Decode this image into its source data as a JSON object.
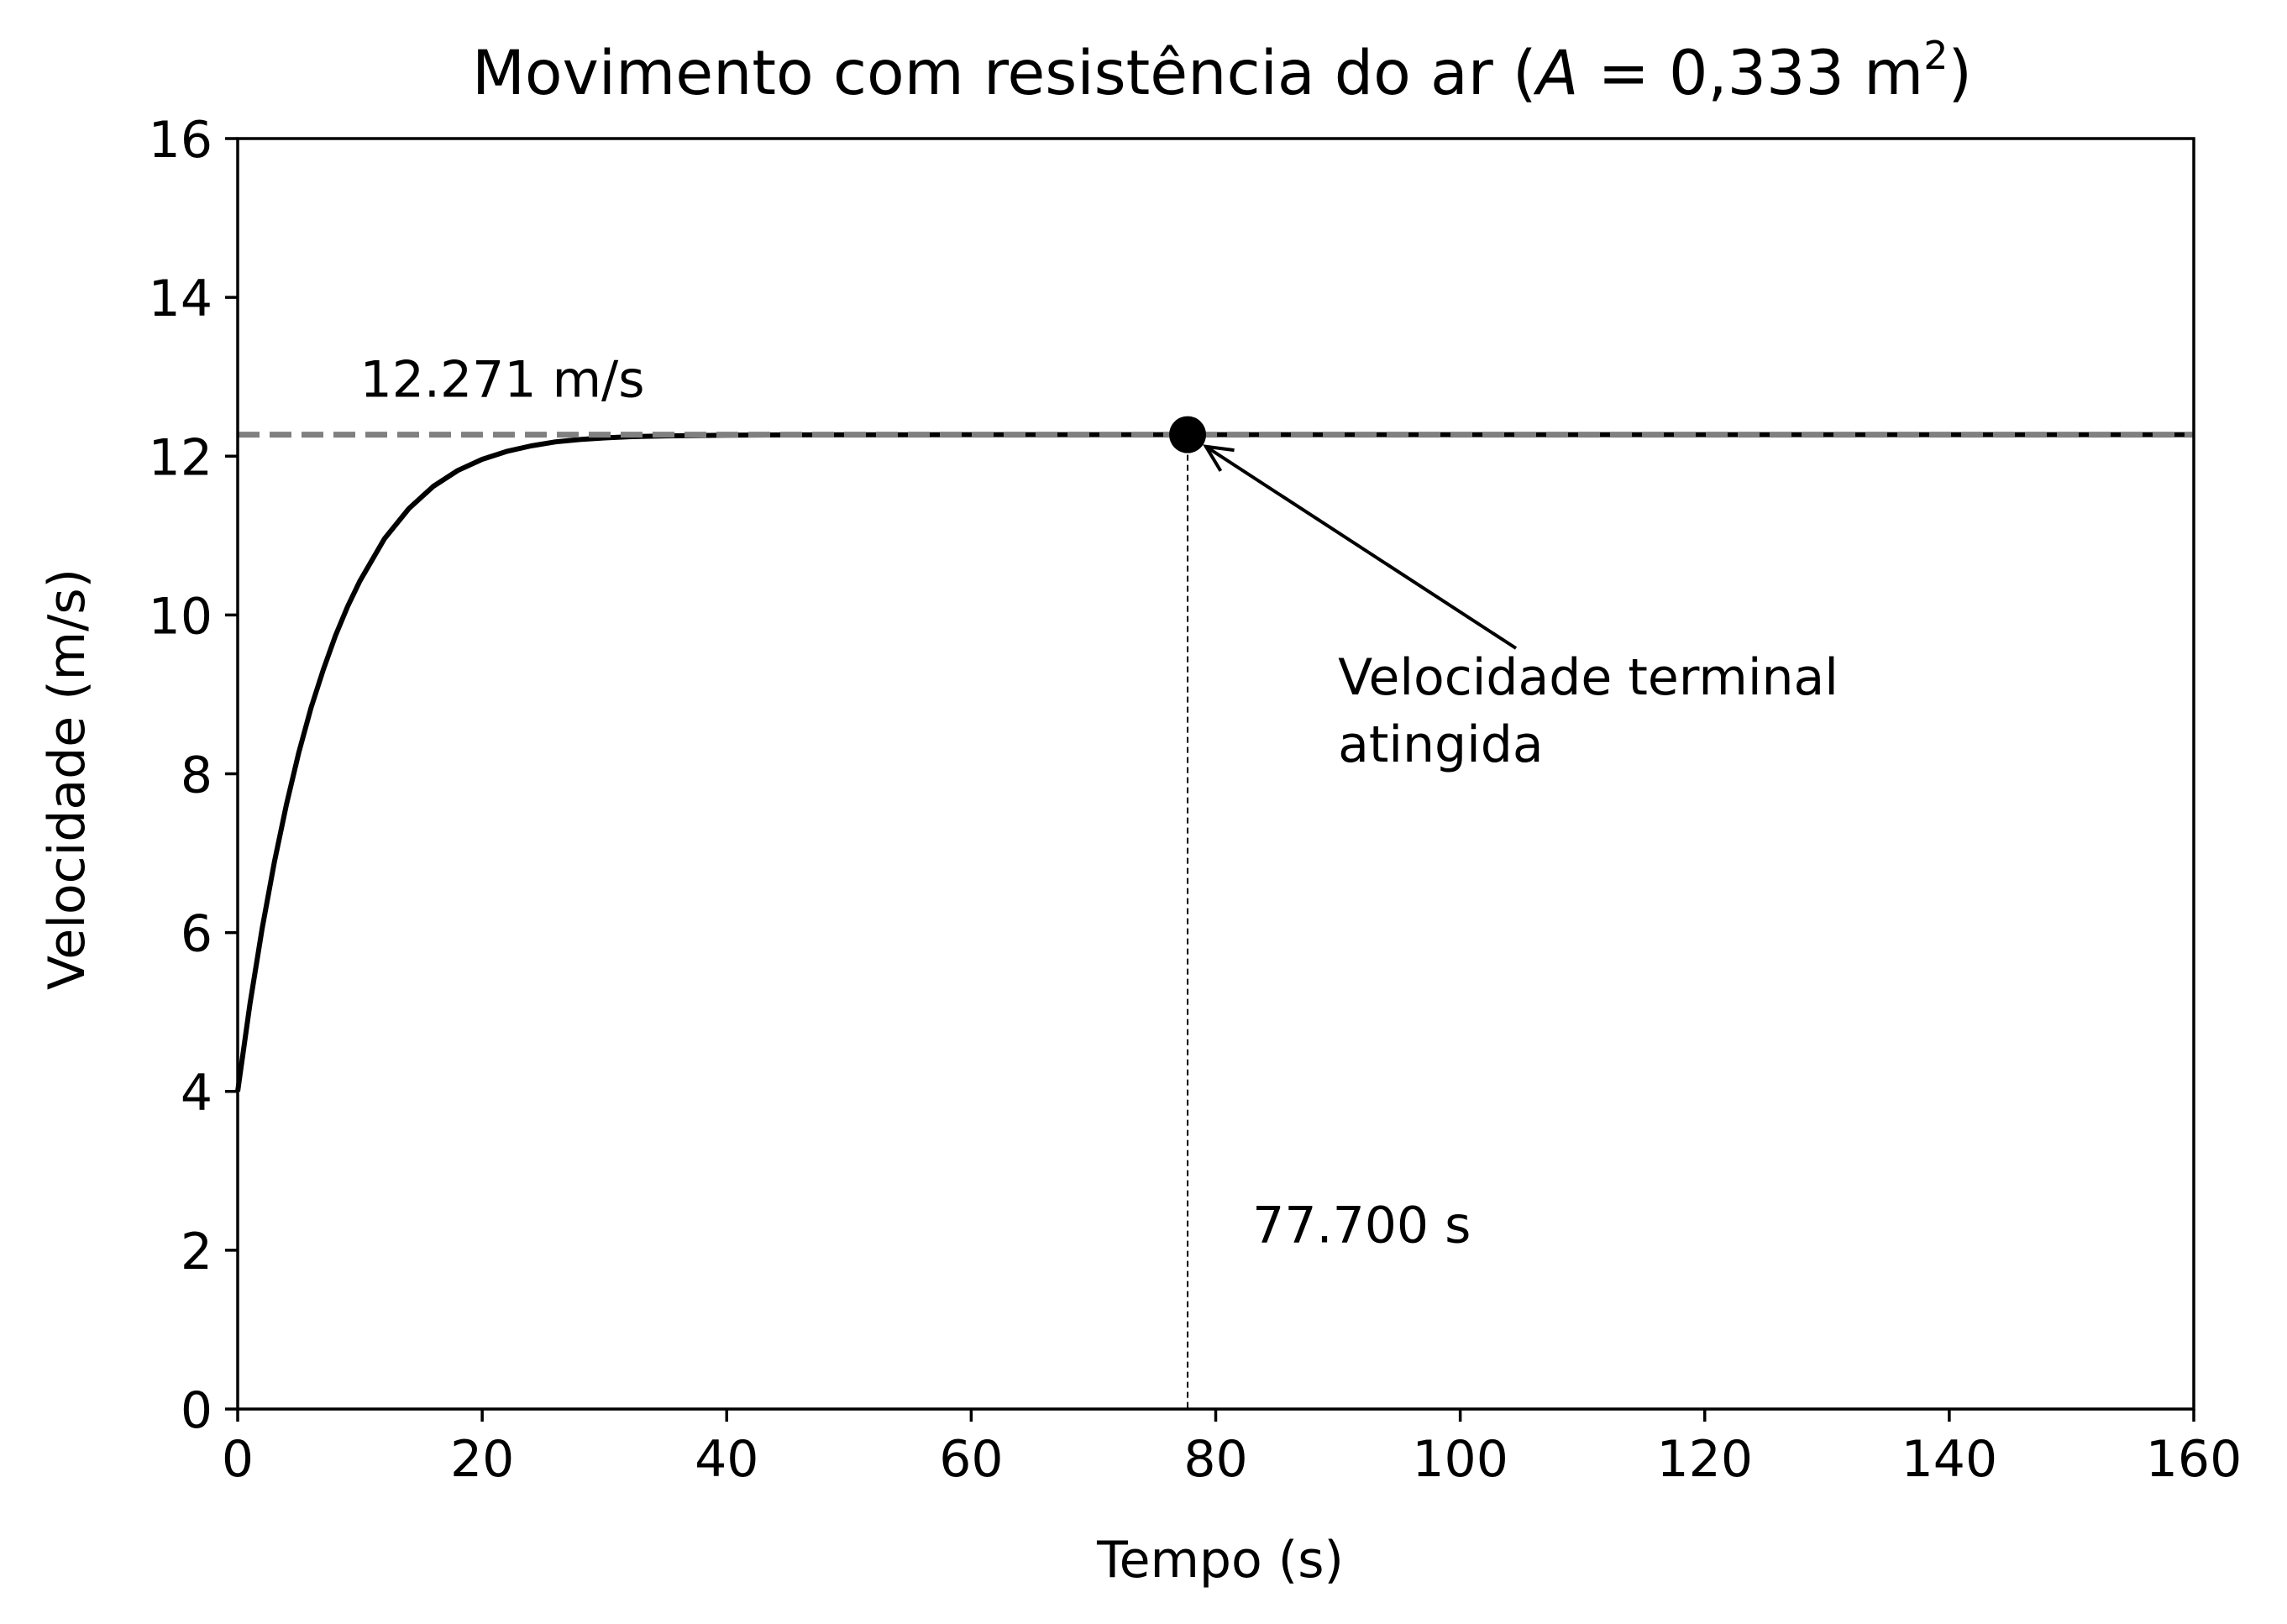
{
  "chart_data": {
    "type": "line",
    "title_main": "Movimento com resistência do ar (",
    "title_var": "A",
    "title_eq": " = 0,333 m",
    "title_sup": "2",
    "title_close": ")",
    "xlabel": "Tempo (s)",
    "ylabel": "Velocidade (m/s)",
    "xlim": [
      0,
      160
    ],
    "ylim": [
      0,
      16
    ],
    "xticks": [
      0,
      20,
      40,
      60,
      80,
      100,
      120,
      140,
      160
    ],
    "yticks": [
      0,
      2,
      4,
      6,
      8,
      10,
      12,
      14,
      16
    ],
    "xtick_labels": [
      "0",
      "20",
      "40",
      "60",
      "80",
      "100",
      "120",
      "140",
      "160"
    ],
    "ytick_labels": [
      "0",
      "2",
      "4",
      "6",
      "8",
      "10",
      "12",
      "14",
      "16"
    ],
    "grid": false,
    "series": [
      {
        "color": "#000000",
        "style": "solid",
        "x": [
          0,
          1,
          2,
          3,
          4,
          5,
          6,
          7,
          8,
          9,
          10,
          12,
          14,
          16,
          18,
          20,
          22,
          24,
          26,
          28,
          30,
          32,
          35,
          40,
          45,
          50,
          55,
          60,
          65,
          70,
          75,
          80,
          90,
          100,
          110,
          120,
          130,
          140,
          150,
          160
        ],
        "y": [
          4.0,
          5.1,
          6.05,
          6.89,
          7.62,
          8.27,
          8.83,
          9.31,
          9.74,
          10.11,
          10.43,
          10.96,
          11.34,
          11.62,
          11.82,
          11.96,
          12.06,
          12.13,
          12.18,
          12.21,
          12.23,
          12.245,
          12.255,
          12.265,
          12.268,
          12.27,
          12.27,
          12.271,
          12.271,
          12.271,
          12.271,
          12.271,
          12.271,
          12.271,
          12.271,
          12.271,
          12.271,
          12.271,
          12.271,
          12.271
        ]
      }
    ],
    "terminal_velocity": 12.271,
    "terminal_label": "12.271 m/s",
    "terminal_line_color": "#808080",
    "terminal_time": 77.7,
    "terminal_time_label": "77.700 s",
    "marker_point": {
      "x": 77.7,
      "y": 12.271
    },
    "annotation_line1": "Velocidade terminal",
    "annotation_line2": "atingida",
    "annotation_text_pos": {
      "x": 90,
      "y": 9.0
    },
    "terminal_label_pos": {
      "x": 10,
      "y": 12.75
    },
    "time_label_pos": {
      "x": 83,
      "y": 2.1
    }
  }
}
